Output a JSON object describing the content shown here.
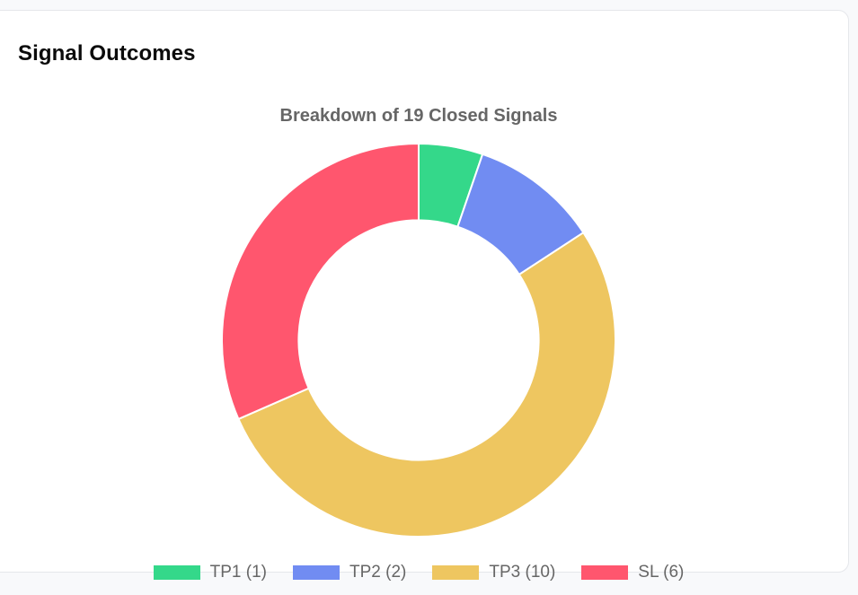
{
  "card": {
    "title": "Signal Outcomes"
  },
  "chart_data": {
    "type": "doughnut",
    "title": "Breakdown of 19 Closed Signals",
    "total": 19,
    "categories": [
      "TP1",
      "TP2",
      "TP3",
      "SL"
    ],
    "values": [
      1,
      2,
      10,
      6
    ],
    "colors": [
      "#34d88a",
      "#718cf2",
      "#eec660",
      "#ff566e"
    ],
    "legend": [
      {
        "label": "TP1 (1)",
        "color": "#34d88a"
      },
      {
        "label": "TP2 (2)",
        "color": "#718cf2"
      },
      {
        "label": "TP3 (10)",
        "color": "#eec660"
      },
      {
        "label": "SL (6)",
        "color": "#ff566e"
      }
    ],
    "legend_position": "bottom",
    "start_angle_deg": -90,
    "cutout_ratio": 0.61
  }
}
